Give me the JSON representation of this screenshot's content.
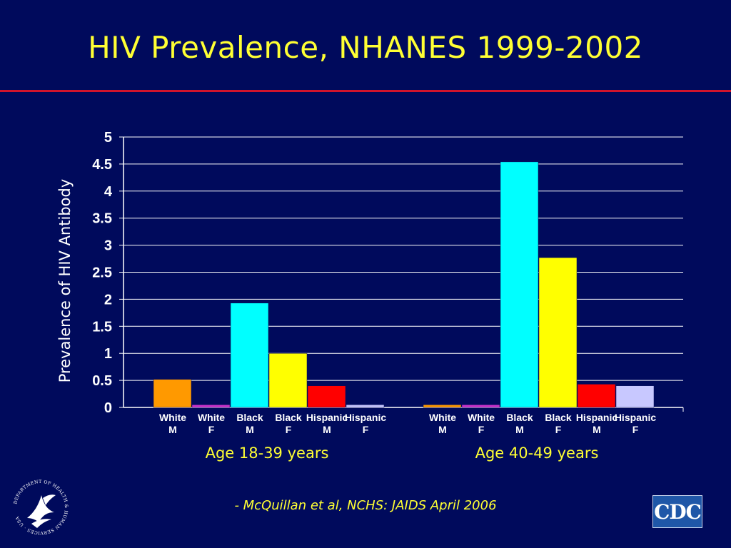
{
  "slide": {
    "title": "HIV Prevalence, NHANES 1999-2002",
    "citation": "- McQuillan et al, NCHS:  JAIDS April 2006",
    "hhs_logo_text": "DEPARTMENT OF HEALTH & HUMAN SERVICES · USA",
    "cdc_logo_text": "CDC"
  },
  "chart_data": {
    "type": "bar",
    "ylabel": "Prevalence of HIV Antibody",
    "ylim": [
      0,
      5
    ],
    "yticks": [
      "0",
      "0.5",
      "1",
      "1.5",
      "2",
      "2.5",
      "3",
      "3.5",
      "4",
      "4.5",
      "5"
    ],
    "grid": true,
    "groups": [
      {
        "label": "Age 18-39 years",
        "bars": [
          {
            "line1": "White",
            "line2": "M",
            "value": 0.52,
            "color": "#ff9900"
          },
          {
            "line1": "White",
            "line2": "F",
            "value": 0.05,
            "color": "#cc33cc"
          },
          {
            "line1": "Black",
            "line2": "M",
            "value": 1.93,
            "color": "#00ffff"
          },
          {
            "line1": "Black",
            "line2": "F",
            "value": 1.0,
            "color": "#ffff00"
          },
          {
            "line1": "Hispanic",
            "line2": "M",
            "value": 0.4,
            "color": "#ff0000"
          },
          {
            "line1": "Hispanic",
            "line2": "F",
            "value": 0.05,
            "color": "#c8c8ff"
          }
        ]
      },
      {
        "label": "Age 40-49 years",
        "bars": [
          {
            "line1": "White",
            "line2": "M",
            "value": 0.05,
            "color": "#ff9900"
          },
          {
            "line1": "White",
            "line2": "F",
            "value": 0.05,
            "color": "#cc33cc"
          },
          {
            "line1": "Black",
            "line2": "M",
            "value": 4.54,
            "color": "#00ffff"
          },
          {
            "line1": "Black",
            "line2": "F",
            "value": 2.77,
            "color": "#ffff00"
          },
          {
            "line1": "Hispanic",
            "line2": "M",
            "value": 0.43,
            "color": "#ff0000"
          },
          {
            "line1": "Hispanic",
            "line2": "F",
            "value": 0.4,
            "color": "#c8c8ff"
          }
        ]
      }
    ]
  }
}
